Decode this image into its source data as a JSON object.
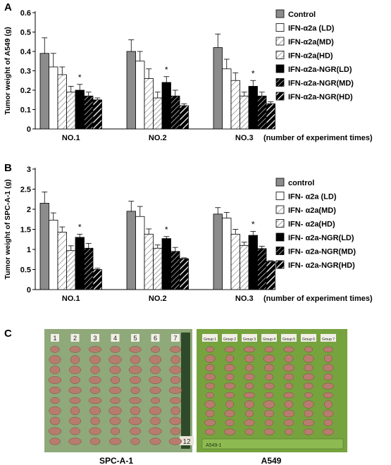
{
  "panel_labels": [
    "A",
    "B",
    "C"
  ],
  "photo_captions": [
    "SPC-A-1",
    "A549"
  ],
  "photo_spc": {
    "group_labels": [
      "1",
      "2",
      "3",
      "4",
      "5",
      "6",
      "7"
    ],
    "tag": "12",
    "tumors_per_group": 10
  },
  "photo_a549": {
    "group_labels": [
      "Group 1",
      "Group 2",
      "Group 3",
      "Group 4",
      "Group 5",
      "Group 6",
      "Group 7"
    ],
    "ruler_label": "A549-1",
    "tumors_per_group": 10
  },
  "colors": {
    "gray": "#8c8c8c",
    "black": "#000000",
    "white": "#ffffff",
    "hatch_light": "#c8c8c8",
    "photo_green_left": "#8fa97a",
    "photo_green_right": "#76a33e",
    "tumor": "#b87c6e"
  },
  "chart_data": [
    {
      "type": "bar",
      "panel": "A",
      "ylabel": "Tumor weight of A549 (g)",
      "xlabel": "(number of experiment times)",
      "categories": [
        "NO.1",
        "NO.2",
        "NO.3"
      ],
      "ylim": [
        0,
        0.6
      ],
      "yticks": [
        "0",
        "0.1",
        "0.2",
        "0.3",
        "0.4",
        "0.5",
        "0.6"
      ],
      "yticks_values": [
        0,
        0.1,
        0.2,
        0.3,
        0.4,
        0.5,
        0.6
      ],
      "significance": "*",
      "significance_series": 4,
      "legend_position": "right",
      "series": [
        {
          "name": "Control",
          "style": "gray",
          "values": [
            0.39,
            0.4,
            0.42
          ],
          "errors": [
            0.08,
            0.06,
            0.07
          ]
        },
        {
          "name": "IFN-α2a (LD)",
          "style": "white",
          "values": [
            0.32,
            0.35,
            0.31
          ],
          "errors": [
            0.07,
            0.05,
            0.05
          ]
        },
        {
          "name": "IFN-α2a(MD)",
          "style": "hatch-sparse",
          "values": [
            0.28,
            0.26,
            0.25
          ],
          "errors": [
            0.04,
            0.05,
            0.04
          ]
        },
        {
          "name": "IFN-α2a(HD)",
          "style": "hatch-light",
          "values": [
            0.19,
            0.16,
            0.17
          ],
          "errors": [
            0.03,
            0.03,
            0.02
          ]
        },
        {
          "name": "IFN-α2a-NGR(LD)",
          "style": "black",
          "values": [
            0.2,
            0.24,
            0.22
          ],
          "errors": [
            0.03,
            0.03,
            0.03
          ]
        },
        {
          "name": "IFN-α2a-NGR(MD)",
          "style": "hatch-dense",
          "values": [
            0.17,
            0.17,
            0.17
          ],
          "errors": [
            0.02,
            0.03,
            0.02
          ]
        },
        {
          "name": "IFN-α2a-NGR(HD)",
          "style": "hatch-white",
          "values": [
            0.15,
            0.12,
            0.13
          ],
          "errors": [
            0.01,
            0.01,
            0.01
          ]
        }
      ]
    },
    {
      "type": "bar",
      "panel": "B",
      "ylabel": "Tumor weight of SPC-A-1 (g)",
      "xlabel": "(number of experiment times)",
      "categories": [
        "NO.1",
        "NO.2",
        "NO.3"
      ],
      "ylim": [
        0,
        3
      ],
      "yticks": [
        "0",
        "0.5",
        "1",
        "1.5",
        "2",
        "2.5",
        "3"
      ],
      "yticks_values": [
        0,
        0.5,
        1,
        1.5,
        2,
        2.5,
        3
      ],
      "significance": "*",
      "significance_series": 4,
      "legend_position": "right",
      "series": [
        {
          "name": "control",
          "style": "gray",
          "values": [
            2.15,
            1.95,
            1.88
          ],
          "errors": [
            0.28,
            0.25,
            0.16
          ]
        },
        {
          "name": "IFN- α2a (LD)",
          "style": "white",
          "values": [
            1.73,
            1.82,
            1.78
          ],
          "errors": [
            0.18,
            0.25,
            0.14
          ]
        },
        {
          "name": "IFN- α2a(MD)",
          "style": "hatch-sparse",
          "values": [
            1.43,
            1.38,
            1.38
          ],
          "errors": [
            0.13,
            0.13,
            0.12
          ]
        },
        {
          "name": "IFN- α2a(HD)",
          "style": "hatch-light",
          "values": [
            0.97,
            1.03,
            1.1
          ],
          "errors": [
            0.12,
            0.08,
            0.08
          ]
        },
        {
          "name": "IFN- α2a-NGR(LD)",
          "style": "black",
          "values": [
            1.3,
            1.27,
            1.35
          ],
          "errors": [
            0.08,
            0.05,
            0.1
          ]
        },
        {
          "name": "IFN- α2a-NGR(MD)",
          "style": "hatch-dense",
          "values": [
            1.03,
            0.95,
            1.02
          ],
          "errors": [
            0.12,
            0.1,
            0.06
          ]
        },
        {
          "name": "IFN- α2a-NGR(HD)",
          "style": "hatch-white",
          "values": [
            0.5,
            0.77,
            0.7
          ],
          "errors": [
            0.03,
            0.02,
            0.02
          ]
        }
      ]
    }
  ]
}
